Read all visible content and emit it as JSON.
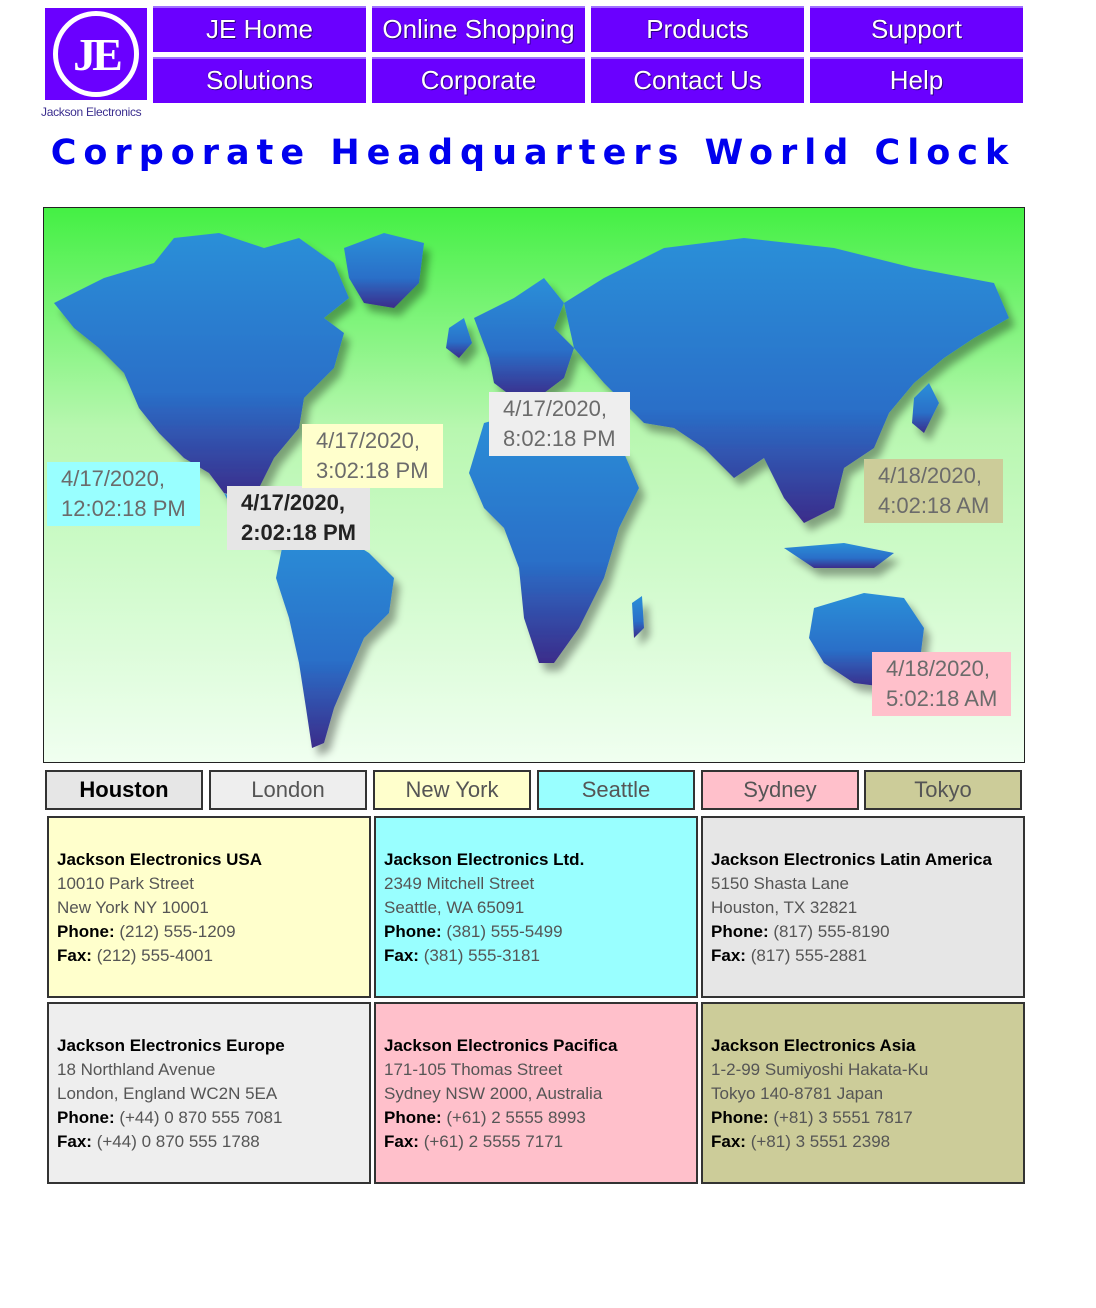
{
  "logo": {
    "initials": "JE",
    "caption": "Jackson Electronics"
  },
  "nav": [
    {
      "label": "JE Home"
    },
    {
      "label": "Online Shopping"
    },
    {
      "label": "Products"
    },
    {
      "label": "Support"
    },
    {
      "label": "Solutions"
    },
    {
      "label": "Corporate"
    },
    {
      "label": "Contact Us"
    },
    {
      "label": "Help"
    }
  ],
  "title": "Corporate Headquarters World Clock",
  "clocks": {
    "seattle": {
      "date": "4/17/2020,",
      "time": "12:02:18 PM",
      "color": "#99ffff"
    },
    "houston": {
      "date": "4/17/2020,",
      "time": "2:02:18 PM",
      "color": "#e6e6e6"
    },
    "newyork": {
      "date": "4/17/2020,",
      "time": "3:02:18 PM",
      "color": "#ffffcc"
    },
    "london": {
      "date": "4/17/2020,",
      "time": "8:02:18 PM",
      "color": "#eeeeee"
    },
    "tokyo": {
      "date": "4/18/2020,",
      "time": "4:02:18 AM",
      "color": "#cccc99"
    },
    "sydney": {
      "date": "4/18/2020,",
      "time": "5:02:18 AM",
      "color": "#ffc0cb"
    }
  },
  "tabs": [
    {
      "label": "Houston",
      "color": "#e6e6e6",
      "active": true
    },
    {
      "label": "London",
      "color": "#eeeeee",
      "active": false
    },
    {
      "label": "New York",
      "color": "#ffffcc",
      "active": false
    },
    {
      "label": "Seattle",
      "color": "#99ffff",
      "active": false
    },
    {
      "label": "Sydney",
      "color": "#ffc0cb",
      "active": false
    },
    {
      "label": "Tokyo",
      "color": "#cccc99",
      "active": false
    }
  ],
  "offices": [
    {
      "name": "Jackson Electronics USA",
      "line1": "10010 Park Street",
      "line2": "New York NY 10001",
      "phone_label": "Phone:",
      "phone": "(212) 555-1209",
      "fax_label": "Fax:",
      "fax": "(212) 555-4001",
      "color": "#ffffcc"
    },
    {
      "name": "Jackson Electronics Ltd.",
      "line1": "2349 Mitchell Street",
      "line2": "Seattle, WA 65091",
      "phone_label": "Phone:",
      "phone": "(381) 555-5499",
      "fax_label": "Fax:",
      "fax": "(381) 555-3181",
      "color": "#99ffff"
    },
    {
      "name": "Jackson Electronics Latin America",
      "line1": "5150 Shasta Lane",
      "line2": "Houston, TX 32821",
      "phone_label": "Phone:",
      "phone": "(817) 555-8190",
      "fax_label": "Fax:",
      "fax": "(817) 555-2881",
      "color": "#e6e6e6"
    },
    {
      "name": "Jackson Electronics Europe",
      "line1": "18 Northland Avenue",
      "line2": "London, England WC2N 5EA",
      "phone_label": "Phone:",
      "phone": "(+44) 0 870 555 7081",
      "fax_label": "Fax:",
      "fax": "(+44) 0 870 555 1788",
      "color": "#eeeeee"
    },
    {
      "name": "Jackson Electronics Pacifica",
      "line1": "171-105 Thomas Street",
      "line2": "Sydney NSW 2000, Australia",
      "phone_label": "Phone:",
      "phone": "(+61) 2 5555 8993",
      "fax_label": "Fax:",
      "fax": "(+61) 2 5555 7171",
      "color": "#ffc0cb"
    },
    {
      "name": "Jackson Electronics Asia",
      "line1": "1-2-99 Sumiyoshi Hakata-Ku",
      "line2": "Tokyo 140-8781 Japan",
      "phone_label": "Phone:",
      "phone": "(+81) 3 5551 7817",
      "fax_label": "Fax:",
      "fax": "(+81) 3 5551 2398",
      "color": "#cccc99"
    }
  ]
}
